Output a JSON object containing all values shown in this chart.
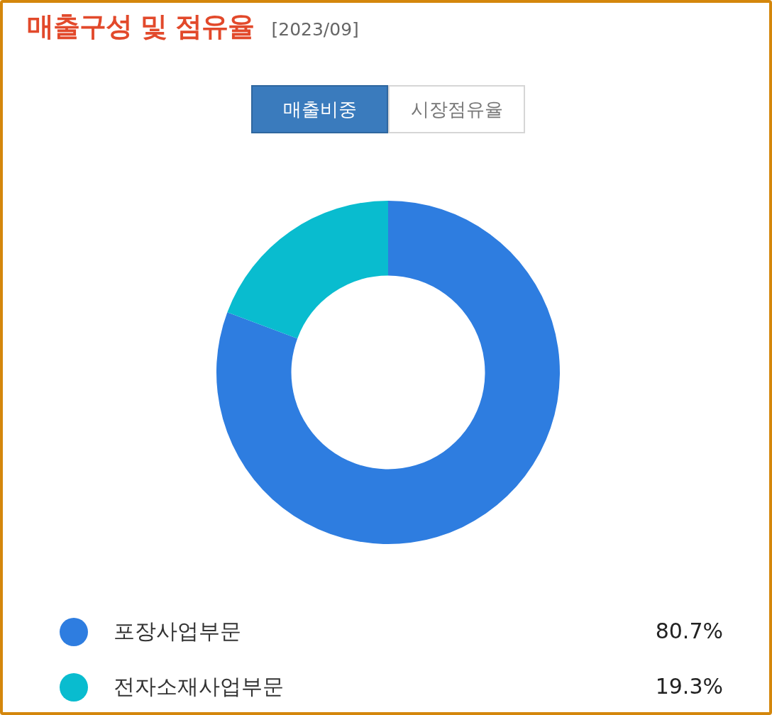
{
  "chart_data": {
    "type": "donut",
    "title": "매출구성 및 점유율",
    "subtitle": "[2023/09]",
    "annotations": [
      "매출비중",
      "시장점유율"
    ],
    "categories": [
      "포장사업부문",
      "전자소재사업부문"
    ],
    "values": [
      80.7,
      19.3
    ],
    "colors": [
      "#2e7de0",
      "#09bccf"
    ],
    "value_labels": [
      "80.7%",
      "19.3%"
    ],
    "legend": "bottom"
  }
}
